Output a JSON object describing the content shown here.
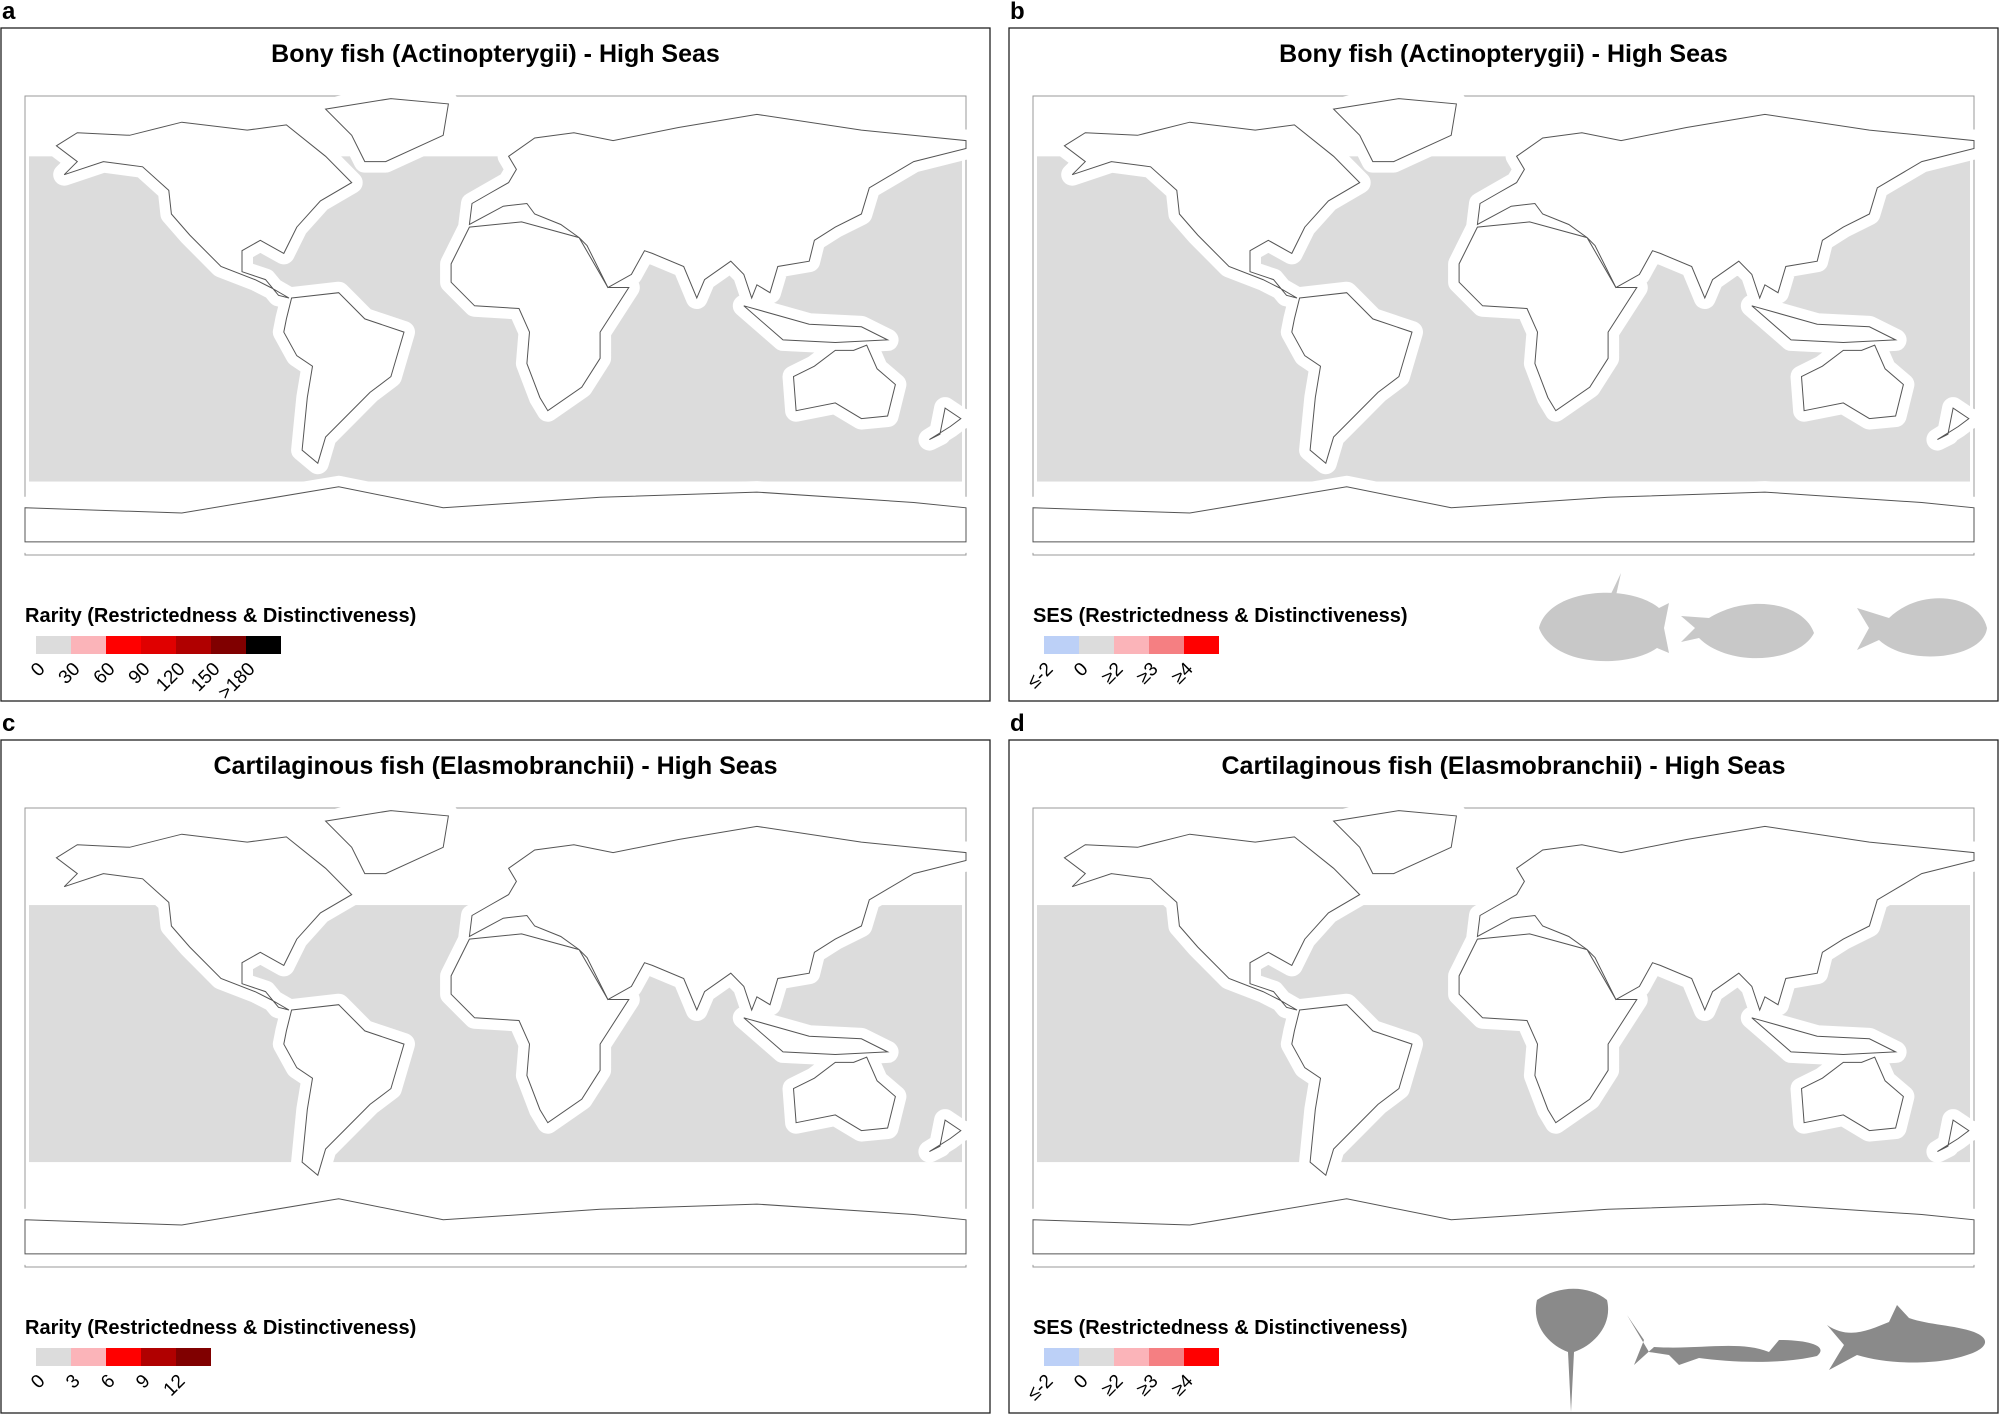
{
  "panels": [
    {
      "label": "a",
      "title": "Bony fish (Actinopterygii) - High Seas",
      "legend": {
        "title": "Rarity (Restrictedness & Distinctiveness)",
        "labels": [
          "0",
          "30",
          "60",
          "90",
          "120",
          "150",
          ">180"
        ],
        "colors": [
          "#dcdcdc",
          "#fbb4b9",
          "#ff0000",
          "#e00000",
          "#b00000",
          "#800000",
          "#000000"
        ]
      }
    },
    {
      "label": "b",
      "title": "Bony fish (Actinopterygii) - High Seas",
      "legend": {
        "title": "SES (Restrictedness & Distinctiveness)",
        "labels": [
          "≤-2",
          "0",
          "≥2",
          "≥3",
          "≥4"
        ],
        "colors": [
          "#bcd0f7",
          "#dcdcdc",
          "#fbb4b9",
          "#f57f82",
          "#ff0000"
        ]
      }
    },
    {
      "label": "c",
      "title": "Cartilaginous fish (Elasmobranchii) - High Seas",
      "legend": {
        "title": "Rarity (Restrictedness & Distinctiveness)",
        "labels": [
          "0",
          "3",
          "6",
          "9",
          "12"
        ],
        "colors": [
          "#dcdcdc",
          "#fbb4b9",
          "#ff0000",
          "#b00000",
          "#800000"
        ]
      }
    },
    {
      "label": "d",
      "title": "Cartilaginous fish (Elasmobranchii) - High Seas",
      "legend": {
        "title": "SES (Restrictedness & Distinctiveness)",
        "labels": [
          "≤-2",
          "0",
          "≥2",
          "≥3",
          "≥4"
        ],
        "colors": [
          "#bcd0f7",
          "#dcdcdc",
          "#fbb4b9",
          "#f57f82",
          "#ff0000"
        ]
      }
    }
  ]
}
